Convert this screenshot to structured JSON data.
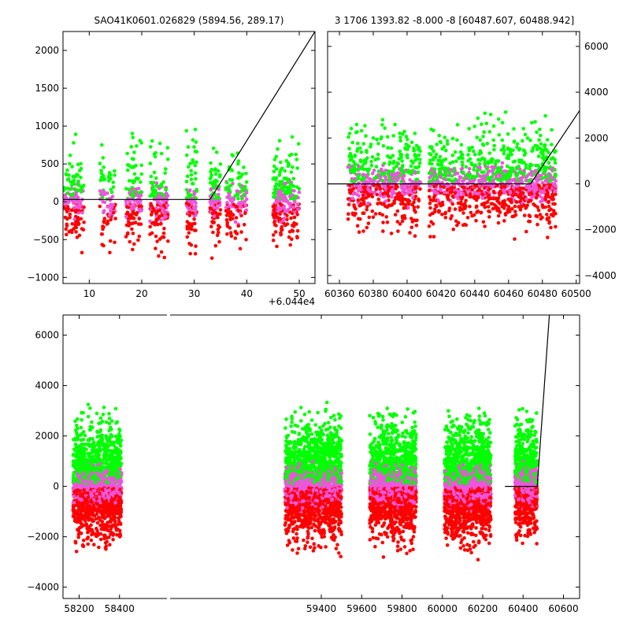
{
  "titles": {
    "left": "SAO41K0601.026829 (5894.56, 289.17)",
    "right": "3 1706 1393.82 -8.000 -8 [60487.607, 60488.942]"
  },
  "offset_text": "+6.044e4",
  "colors": {
    "green": "#00ff00",
    "violet": "#ee55dd",
    "red": "#ff0000",
    "line": "#000000"
  },
  "chart_data": [
    {
      "type": "scatter",
      "panel": "top-left",
      "xlim": [
        5,
        53
      ],
      "ylim": [
        -1080,
        2250
      ],
      "xticks": [
        10,
        20,
        30,
        40,
        50
      ],
      "xtick_labels": [
        "10",
        "20",
        "30",
        "40",
        "50"
      ],
      "yticks": [
        -1000,
        -500,
        0,
        500,
        1000,
        1500,
        2000
      ],
      "ytick_labels": [
        "−1000",
        "−500",
        "0",
        "500",
        "1000",
        "1500",
        "2000"
      ],
      "x_offset": 60440,
      "clusters": [
        {
          "x": [
            5,
            9
          ],
          "n": 55
        },
        {
          "x": [
            12,
            15
          ],
          "n": 30
        },
        {
          "x": [
            17,
            20
          ],
          "n": 45
        },
        {
          "x": [
            21.5,
            25
          ],
          "n": 55
        },
        {
          "x": [
            28.5,
            30.5
          ],
          "n": 35
        },
        {
          "x": [
            33,
            35
          ],
          "n": 40
        },
        {
          "x": [
            36,
            40
          ],
          "n": 45
        },
        {
          "x": [
            45,
            50
          ],
          "n": 85
        }
      ],
      "model_line": [
        [
          5,
          30
        ],
        [
          33,
          30
        ],
        [
          53,
          2250
        ]
      ]
    },
    {
      "type": "scatter",
      "panel": "top-right",
      "xlim": [
        60353,
        60502
      ],
      "ylim": [
        -4350,
        6650
      ],
      "xticks": [
        60360,
        60380,
        60400,
        60420,
        60440,
        60460,
        60480,
        60500
      ],
      "xtick_labels": [
        "60360",
        "60380",
        "60400",
        "60420",
        "60440",
        "60460",
        "60480",
        "60500"
      ],
      "yticks": [
        -4000,
        -2000,
        0,
        2000,
        4000,
        6000
      ],
      "ytick_labels": [
        "−4000",
        "−2000",
        "0",
        "2000",
        "4000",
        "6000"
      ],
      "clusters": [
        {
          "x": [
            60365,
            60385
          ],
          "n": 90
        },
        {
          "x": [
            60385,
            60408
          ],
          "n": 110
        },
        {
          "x": [
            60413,
            60433
          ],
          "n": 90
        },
        {
          "x": [
            60433,
            60457
          ],
          "n": 120
        },
        {
          "x": [
            60457,
            60468
          ],
          "n": 60
        },
        {
          "x": [
            60468,
            60488
          ],
          "n": 110
        }
      ],
      "model_line": [
        [
          60353,
          0
        ],
        [
          60473,
          0
        ],
        [
          60502,
          3200
        ]
      ]
    },
    {
      "type": "scatter",
      "panel": "bottom",
      "xlim": [
        58120,
        60680
      ],
      "ylim": [
        -4450,
        6800
      ],
      "xticks": [
        58200,
        58400,
        59400,
        59600,
        59800,
        60000,
        60200,
        60400,
        60600
      ],
      "xtick_labels": [
        "58200",
        "58400",
        "59400",
        "59600",
        "59800",
        "60000",
        "60200",
        "60400",
        "60600"
      ],
      "yticks": [
        -4000,
        -2000,
        0,
        2000,
        4000,
        6000
      ],
      "ytick_labels": [
        "−4000",
        "−2000",
        "0",
        "2000",
        "4000",
        "6000"
      ],
      "clusters": [
        {
          "x": [
            58170,
            58410
          ],
          "n": 650
        },
        {
          "x": [
            59220,
            59500
          ],
          "n": 850
        },
        {
          "x": [
            59640,
            59870
          ],
          "n": 700
        },
        {
          "x": [
            60010,
            60240
          ],
          "n": 750
        },
        {
          "x": [
            60360,
            60470
          ],
          "n": 320
        }
      ],
      "model_line": [
        [
          60310,
          0
        ],
        [
          60470,
          0
        ],
        [
          60530,
          6800
        ]
      ]
    }
  ]
}
